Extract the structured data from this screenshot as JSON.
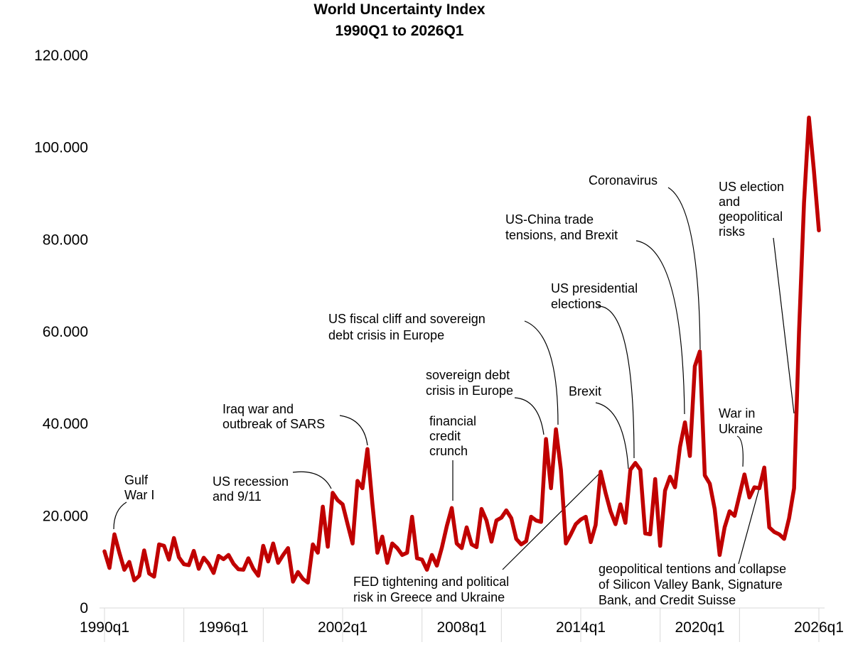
{
  "chart_data": {
    "type": "line",
    "title": "World Uncertainty Index",
    "subtitle": "1990Q1 to 2026Q1",
    "xlabel": "",
    "ylabel": "",
    "x_start": "1990q1",
    "x_end": "2026q1",
    "ylim": [
      0,
      120
    ],
    "y_ticks": [
      "0",
      "20.000",
      "40.000",
      "60.000",
      "80.000",
      "100.000",
      "120.000"
    ],
    "x_ticks": [
      "1990q1",
      "1996q1",
      "2002q1",
      "2008q1",
      "2014q1",
      "2020q1",
      "2026q1"
    ],
    "grid": false,
    "line_color": "#c00000",
    "series": [
      {
        "values": [
          12.3,
          8.7,
          16.0,
          12.0,
          8.3,
          10.0,
          6.0,
          7.0,
          12.5,
          7.5,
          6.8,
          13.8,
          13.5,
          10.5,
          15.2,
          11.0,
          9.5,
          9.3,
          12.4,
          8.5,
          10.9,
          9.6,
          7.6,
          11.3,
          10.6,
          11.5,
          9.6,
          8.4,
          8.3,
          10.8,
          8.5,
          7.0,
          13.5,
          10.1,
          14.0,
          9.8,
          11.5,
          13.0,
          5.7,
          7.8,
          6.3,
          5.5,
          13.8,
          12.0,
          22.0,
          13.3,
          25.0,
          23.4,
          22.5,
          18.2,
          14.0,
          27.6,
          26.0,
          34.5,
          22.6,
          12.0,
          15.5,
          9.8,
          14.0,
          13.0,
          11.5,
          12.0,
          19.8,
          10.8,
          10.5,
          8.3,
          11.5,
          9.2,
          13.1,
          17.8,
          21.7,
          14.0,
          13.0,
          17.5,
          13.8,
          13.2,
          21.5,
          19.0,
          14.4,
          19.0,
          19.6,
          21.2,
          19.5,
          15.0,
          13.8,
          14.5,
          19.8,
          19.0,
          18.7,
          36.7,
          26.0,
          38.8,
          30.0,
          14.0,
          16.0,
          18.2,
          19.2,
          19.8,
          14.3,
          18.0,
          29.6,
          25.0,
          21.0,
          18.2,
          22.5,
          18.5,
          30.0,
          31.5,
          30.0,
          16.2,
          16.0,
          28.0,
          13.5,
          25.5,
          28.5,
          26.2,
          35.0,
          40.3,
          33.0,
          52.5,
          55.7,
          28.8,
          27.0,
          21.5,
          11.5,
          17.5,
          21.0,
          20.0,
          24.5,
          29.0,
          24.0,
          26.2,
          26.0,
          30.5,
          17.5,
          16.5,
          16.0,
          15.0,
          19.5,
          26.0,
          60.0,
          88.0,
          106.5,
          95.0,
          82.0
        ]
      }
    ],
    "annotations": [
      {
        "lines": [
          "Gulf",
          "War I"
        ]
      },
      {
        "lines": [
          "US recession",
          "and 9/11"
        ]
      },
      {
        "lines": [
          "Iraq war and",
          "outbreak of SARS"
        ]
      },
      {
        "lines": [
          "US fiscal cliff and sovereign",
          "debt crisis in Europe"
        ]
      },
      {
        "lines": [
          "sovereign debt",
          "crisis in Europe"
        ]
      },
      {
        "lines": [
          "financial",
          "credit",
          "crunch"
        ]
      },
      {
        "lines": [
          "FED tightening and political",
          "risk in Greece and Ukraine"
        ]
      },
      {
        "lines": [
          "Brexit"
        ]
      },
      {
        "lines": [
          "US presidential",
          "elections"
        ]
      },
      {
        "lines": [
          "US-China trade",
          "tensions, and Brexit"
        ]
      },
      {
        "lines": [
          "Coronavirus"
        ]
      },
      {
        "lines": [
          "War in",
          "Ukraine"
        ]
      },
      {
        "lines": [
          "geopolitical tentions and collapse",
          "of Silicon Valley Bank, Signature",
          "Bank, and Credit Suisse"
        ]
      },
      {
        "lines": [
          "US election",
          "and",
          "geopolitical",
          "risks"
        ]
      }
    ]
  }
}
